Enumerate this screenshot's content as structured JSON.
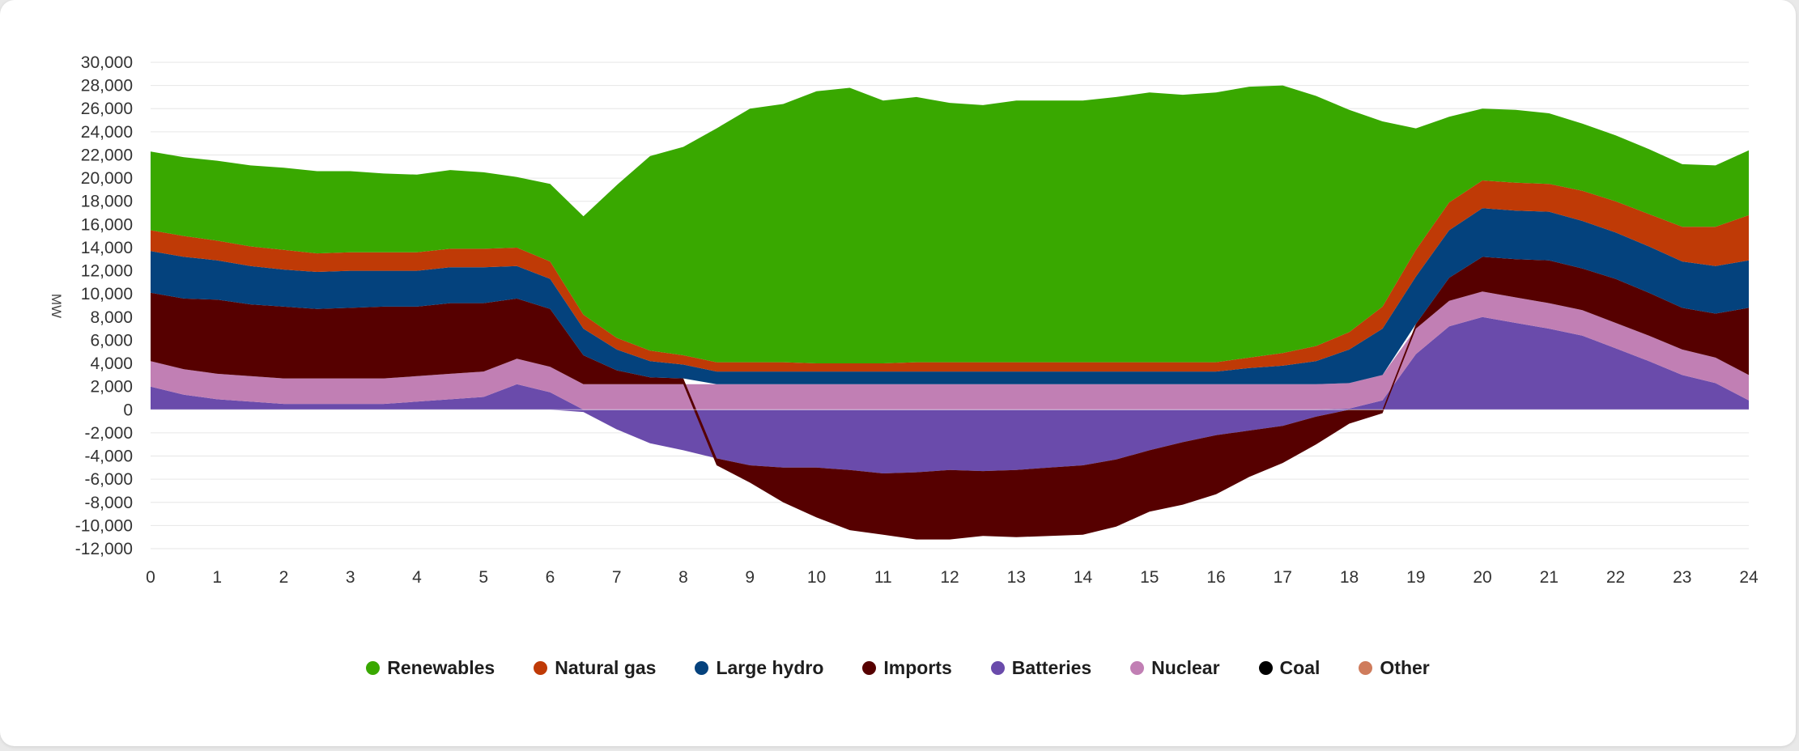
{
  "chart_data": {
    "type": "area",
    "ylabel": "MW",
    "xlim": [
      0,
      24
    ],
    "ylim": [
      -12000,
      30000
    ],
    "xticks": [
      "0",
      "1",
      "2",
      "3",
      "4",
      "5",
      "6",
      "7",
      "8",
      "9",
      "10",
      "11",
      "12",
      "13",
      "14",
      "15",
      "16",
      "17",
      "18",
      "19",
      "20",
      "21",
      "22",
      "23",
      "24"
    ],
    "yticks": [
      "-12,000",
      "-10,000",
      "-8,000",
      "-6,000",
      "-4,000",
      "-2,000",
      "0",
      "2,000",
      "4,000",
      "6,000",
      "8,000",
      "10,000",
      "12,000",
      "14,000",
      "16,000",
      "18,000",
      "20,000",
      "22,000",
      "24,000",
      "26,000",
      "28,000",
      "30,000"
    ],
    "grid": true,
    "legend_position": "bottom",
    "x": [
      0,
      0.5,
      1,
      1.5,
      2,
      2.5,
      3,
      3.5,
      4,
      4.5,
      5,
      5.5,
      6,
      6.5,
      7,
      7.5,
      8,
      8.5,
      9,
      9.5,
      10,
      10.5,
      11,
      11.5,
      12,
      12.5,
      13,
      13.5,
      14,
      14.5,
      15,
      15.5,
      16,
      16.5,
      17,
      17.5,
      18,
      18.5,
      19,
      19.5,
      20,
      20.5,
      21,
      21.5,
      22,
      22.5,
      23,
      23.5,
      24
    ],
    "series": [
      {
        "name": "Batteries",
        "color": "#6a4bab",
        "values": [
          2000,
          1300,
          900,
          700,
          500,
          500,
          500,
          500,
          700,
          900,
          1100,
          2200,
          1500,
          -200,
          -1700,
          -2900,
          -3500,
          -4200,
          -4800,
          -5000,
          -5000,
          -5200,
          -5500,
          -5400,
          -5200,
          -5300,
          -5200,
          -5000,
          -4800,
          -4300,
          -3500,
          -2800,
          -2200,
          -1800,
          -1400,
          -600,
          100,
          800,
          4800,
          7200,
          8000,
          7500,
          7000,
          6400,
          5300,
          4200,
          3000,
          2300,
          800
        ]
      },
      {
        "name": "Nuclear",
        "color": "#c17fb4",
        "values": [
          2200,
          2200,
          2200,
          2200,
          2200,
          2200,
          2200,
          2200,
          2200,
          2200,
          2200,
          2200,
          2200,
          2200,
          2200,
          2200,
          2200,
          2200,
          2200,
          2200,
          2200,
          2200,
          2200,
          2200,
          2200,
          2200,
          2200,
          2200,
          2200,
          2200,
          2200,
          2200,
          2200,
          2200,
          2200,
          2200,
          2200,
          2200,
          2200,
          2200,
          2200,
          2200,
          2200,
          2200,
          2200,
          2200,
          2200,
          2200,
          2200
        ]
      },
      {
        "name": "Imports",
        "color": "#560000",
        "values": [
          5900,
          6100,
          6400,
          6200,
          6200,
          6000,
          6100,
          6200,
          6000,
          6100,
          5900,
          5200,
          5000,
          2500,
          1200,
          600,
          500,
          -600,
          -1500,
          -3000,
          -4300,
          -5200,
          -5300,
          -5800,
          -6000,
          -5600,
          -5800,
          -5900,
          -6000,
          -5800,
          -5300,
          -5400,
          -5100,
          -4000,
          -3200,
          -2400,
          -1200,
          -300,
          400,
          2000,
          3000,
          3300,
          3700,
          3600,
          3800,
          3700,
          3600,
          3800,
          5800
        ]
      },
      {
        "name": "Large hydro",
        "color": "#04427d",
        "values": [
          3600,
          3600,
          3400,
          3300,
          3200,
          3200,
          3200,
          3100,
          3100,
          3100,
          3100,
          2800,
          2600,
          2300,
          1800,
          1400,
          1200,
          1100,
          1100,
          1100,
          1100,
          1100,
          1100,
          1100,
          1100,
          1100,
          1100,
          1100,
          1100,
          1100,
          1100,
          1100,
          1100,
          1400,
          1600,
          2000,
          2900,
          4000,
          4100,
          4100,
          4200,
          4200,
          4200,
          4100,
          4000,
          4000,
          4000,
          4100,
          4100
        ]
      },
      {
        "name": "Natural gas",
        "color": "#bf3a06",
        "values": [
          1800,
          1800,
          1700,
          1700,
          1700,
          1600,
          1600,
          1600,
          1600,
          1600,
          1600,
          1600,
          1500,
          1200,
          1000,
          900,
          800,
          800,
          800,
          800,
          700,
          700,
          700,
          800,
          800,
          800,
          800,
          800,
          800,
          800,
          800,
          800,
          800,
          900,
          1100,
          1300,
          1500,
          1900,
          2300,
          2400,
          2400,
          2400,
          2400,
          2600,
          2700,
          2800,
          3000,
          3400,
          3900
        ]
      },
      {
        "name": "Renewables",
        "color": "#39a800",
        "values": [
          6800,
          6800,
          6900,
          7000,
          7100,
          7100,
          7000,
          6800,
          6700,
          6800,
          6600,
          6100,
          6700,
          8500,
          13200,
          16800,
          18000,
          20200,
          21900,
          22300,
          23500,
          23800,
          22700,
          22900,
          22400,
          22200,
          22600,
          22600,
          22600,
          22900,
          23300,
          23100,
          23300,
          23400,
          23100,
          21600,
          19200,
          16000,
          10500,
          7400,
          6200,
          6300,
          6100,
          5800,
          5700,
          5600,
          5400,
          5300,
          5600
        ]
      },
      {
        "name": "Coal",
        "color": "#000000",
        "values": [
          0,
          0,
          0,
          0,
          0,
          0,
          0,
          0,
          0,
          0,
          0,
          0,
          0,
          0,
          0,
          0,
          0,
          0,
          0,
          0,
          0,
          0,
          0,
          0,
          0,
          0,
          0,
          0,
          0,
          0,
          0,
          0,
          0,
          0,
          0,
          0,
          0,
          0,
          0,
          0,
          0,
          0,
          0,
          0,
          0,
          0,
          0,
          0,
          0
        ]
      },
      {
        "name": "Other",
        "color": "#cf7c5c",
        "values": [
          0,
          0,
          0,
          0,
          0,
          0,
          0,
          0,
          0,
          0,
          0,
          0,
          0,
          0,
          0,
          0,
          0,
          0,
          0,
          0,
          0,
          0,
          0,
          0,
          0,
          0,
          0,
          0,
          0,
          0,
          0,
          0,
          0,
          0,
          0,
          0,
          0,
          0,
          0,
          0,
          0,
          0,
          0,
          0,
          0,
          0,
          0,
          0,
          0
        ]
      }
    ],
    "legend": [
      {
        "name": "Renewables",
        "color": "#39a800"
      },
      {
        "name": "Natural gas",
        "color": "#bf3a06"
      },
      {
        "name": "Large hydro",
        "color": "#04427d"
      },
      {
        "name": "Imports",
        "color": "#560000"
      },
      {
        "name": "Batteries",
        "color": "#6a4bab"
      },
      {
        "name": "Nuclear",
        "color": "#c17fb4"
      },
      {
        "name": "Coal",
        "color": "#000000"
      },
      {
        "name": "Other",
        "color": "#cf7c5c"
      }
    ]
  }
}
